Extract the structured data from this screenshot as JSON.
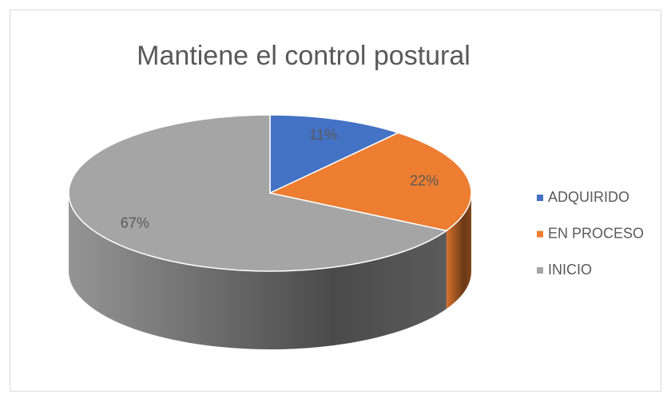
{
  "chart_data": {
    "type": "pie3d",
    "title": "Mantiene el control postural",
    "categories": [
      "ADQUIRIDO",
      "EN PROCESO",
      "INICIO"
    ],
    "values": [
      11,
      22,
      67
    ],
    "value_labels": [
      "11%",
      "22%",
      "67%"
    ],
    "colors": [
      "#4472c4",
      "#ed7d31",
      "#a5a5a5"
    ],
    "legend": "right"
  }
}
